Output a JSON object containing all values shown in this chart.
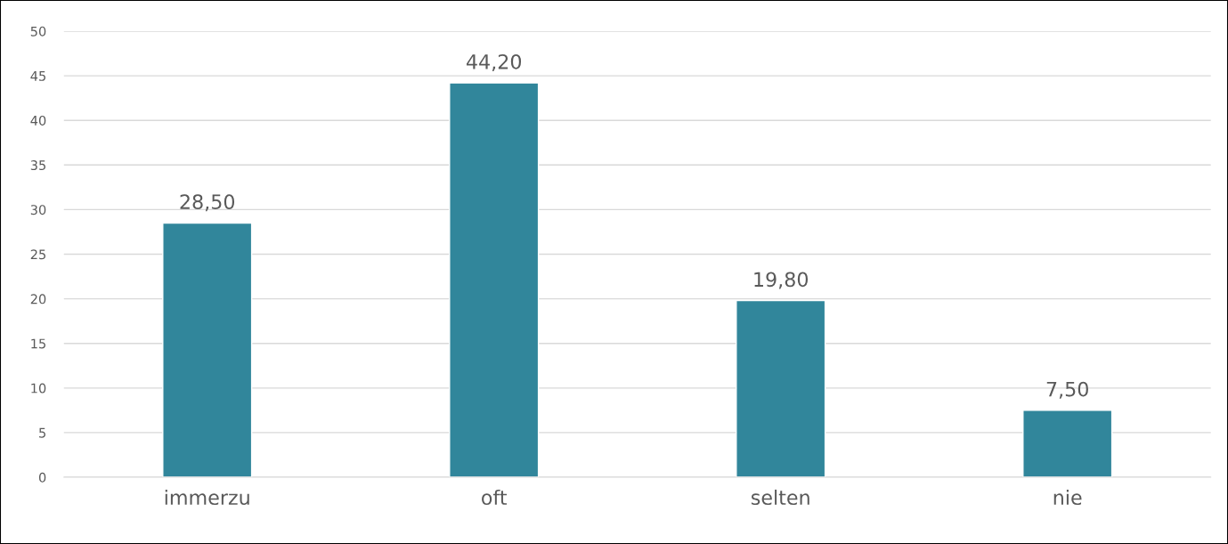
{
  "chart_data": {
    "type": "bar",
    "categories": [
      "immerzu",
      "oft",
      "selten",
      "nie"
    ],
    "values": [
      28.5,
      44.2,
      19.8,
      7.5
    ],
    "value_labels": [
      "28,50",
      "44,20",
      "19,80",
      "7,50"
    ],
    "color": "#31869b",
    "ylim": [
      0,
      50
    ],
    "yticks": [
      0,
      5,
      10,
      15,
      20,
      25,
      30,
      35,
      40,
      45,
      50
    ],
    "grid": "y",
    "legend": false
  }
}
